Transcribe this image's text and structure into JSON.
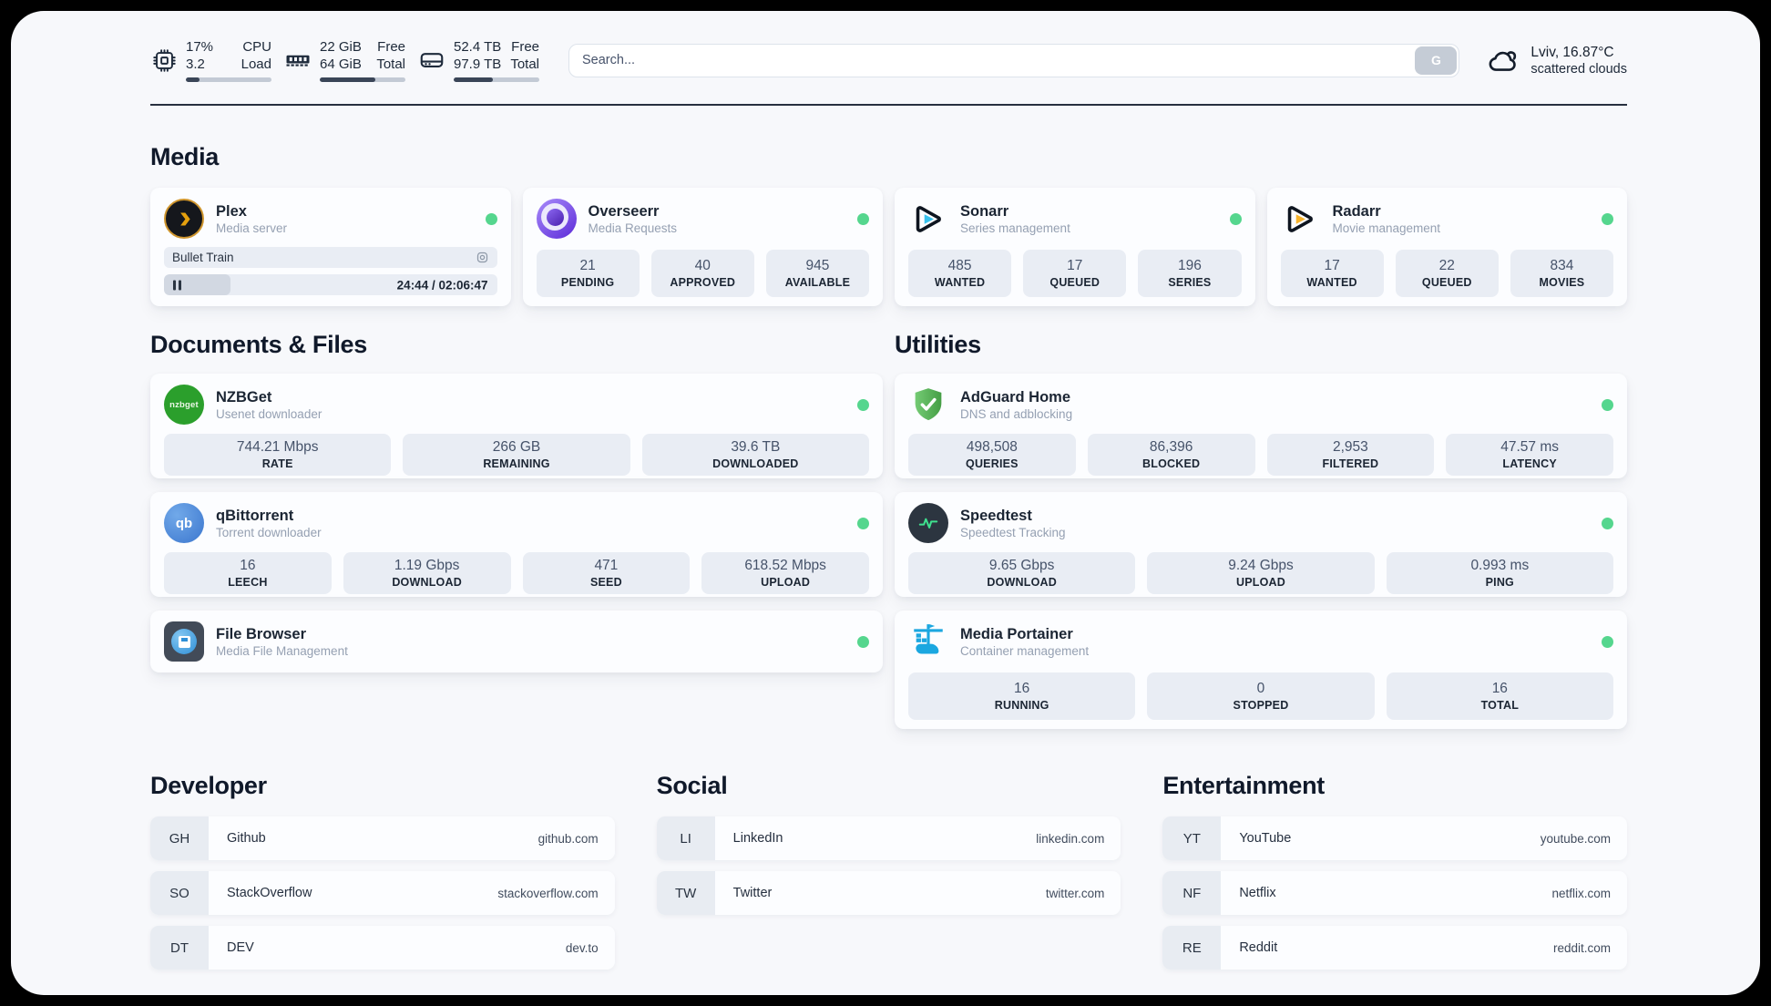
{
  "header": {
    "cpu": {
      "percent": "17%",
      "load": "3.2",
      "label1": "CPU",
      "label2": "Load",
      "progress": 16
    },
    "ram": {
      "free": "22 GiB",
      "total": "64 GiB",
      "label1": "Free",
      "label2": "Total",
      "progress": 65
    },
    "disk": {
      "free": "52.4 TB",
      "total": "97.9 TB",
      "label1": "Free",
      "label2": "Total",
      "progress": 46
    },
    "search": {
      "placeholder": "Search...",
      "button_label": "G"
    },
    "weather": {
      "location": "Lviv, 16.87°C",
      "condition": "scattered clouds"
    }
  },
  "media": {
    "title": "Media",
    "cards": [
      {
        "name": "Plex",
        "subtitle": "Media server",
        "status": "online",
        "media": {
          "title": "Bullet Train",
          "time": "24:44 / 02:06:47",
          "progress": 20
        }
      },
      {
        "name": "Overseerr",
        "subtitle": "Media Requests",
        "status": "online",
        "stats": [
          {
            "value": "21",
            "label": "PENDING"
          },
          {
            "value": "40",
            "label": "APPROVED"
          },
          {
            "value": "945",
            "label": "AVAILABLE"
          }
        ]
      },
      {
        "name": "Sonarr",
        "subtitle": "Series management",
        "status": "online",
        "stats": [
          {
            "value": "485",
            "label": "WANTED"
          },
          {
            "value": "17",
            "label": "QUEUED"
          },
          {
            "value": "196",
            "label": "SERIES"
          }
        ]
      },
      {
        "name": "Radarr",
        "subtitle": "Movie management",
        "status": "online",
        "stats": [
          {
            "value": "17",
            "label": "WANTED"
          },
          {
            "value": "22",
            "label": "QUEUED"
          },
          {
            "value": "834",
            "label": "MOVIES"
          }
        ]
      }
    ]
  },
  "documents": {
    "title": "Documents & Files",
    "cards": [
      {
        "name": "NZBGet",
        "subtitle": "Usenet downloader",
        "status": "online",
        "icon_text": "nzbget",
        "stats": [
          {
            "value": "744.21 Mbps",
            "label": "RATE"
          },
          {
            "value": "266 GB",
            "label": "REMAINING"
          },
          {
            "value": "39.6 TB",
            "label": "DOWNLOADED"
          }
        ]
      },
      {
        "name": "qBittorrent",
        "subtitle": "Torrent downloader",
        "status": "online",
        "icon_text": "qb",
        "stats": [
          {
            "value": "16",
            "label": "LEECH"
          },
          {
            "value": "1.19 Gbps",
            "label": "DOWNLOAD"
          },
          {
            "value": "471",
            "label": "SEED"
          },
          {
            "value": "618.52 Mbps",
            "label": "UPLOAD"
          }
        ]
      },
      {
        "name": "File Browser",
        "subtitle": "Media File Management",
        "status": "online",
        "stats": []
      }
    ]
  },
  "utilities": {
    "title": "Utilities",
    "cards": [
      {
        "name": "AdGuard Home",
        "subtitle": "DNS and adblocking",
        "status": "online",
        "stats": [
          {
            "value": "498,508",
            "label": "QUERIES"
          },
          {
            "value": "86,396",
            "label": "BLOCKED"
          },
          {
            "value": "2,953",
            "label": "FILTERED"
          },
          {
            "value": "47.57 ms",
            "label": "LATENCY"
          }
        ]
      },
      {
        "name": "Speedtest",
        "subtitle": "Speedtest Tracking",
        "status": "online",
        "stats": [
          {
            "value": "9.65 Gbps",
            "label": "DOWNLOAD"
          },
          {
            "value": "9.24 Gbps",
            "label": "UPLOAD"
          },
          {
            "value": "0.993 ms",
            "label": "PING"
          }
        ]
      },
      {
        "name": "Media Portainer",
        "subtitle": "Container management",
        "status": "online",
        "stats": [
          {
            "value": "16",
            "label": "RUNNING"
          },
          {
            "value": "0",
            "label": "STOPPED"
          },
          {
            "value": "16",
            "label": "TOTAL"
          }
        ]
      }
    ]
  },
  "bookmarks": {
    "groups": [
      {
        "title": "Developer",
        "links": [
          {
            "abbr": "GH",
            "name": "Github",
            "url": "github.com"
          },
          {
            "abbr": "SO",
            "name": "StackOverflow",
            "url": "stackoverflow.com"
          },
          {
            "abbr": "DT",
            "name": "DEV",
            "url": "dev.to"
          }
        ]
      },
      {
        "title": "Social",
        "links": [
          {
            "abbr": "LI",
            "name": "LinkedIn",
            "url": "linkedin.com"
          },
          {
            "abbr": "TW",
            "name": "Twitter",
            "url": "twitter.com"
          }
        ]
      },
      {
        "title": "Entertainment",
        "links": [
          {
            "abbr": "YT",
            "name": "YouTube",
            "url": "youtube.com"
          },
          {
            "abbr": "NF",
            "name": "Netflix",
            "url": "netflix.com"
          },
          {
            "abbr": "RE",
            "name": "Reddit",
            "url": "reddit.com"
          }
        ]
      }
    ]
  },
  "colors": {
    "status_online": "#55d68e",
    "plex_accent": "#e5a00d",
    "sonarr_accent": "#38c1ec",
    "radarr_accent": "#f7b32b",
    "adguard_green": "#5cb85c",
    "portainer_blue": "#1ba7e0",
    "speedtest_pulse": "#3fe08e",
    "panel_bg": "#f7f8fb",
    "card_bg": "#fcfdff",
    "stat_bg": "#e9edf4"
  }
}
